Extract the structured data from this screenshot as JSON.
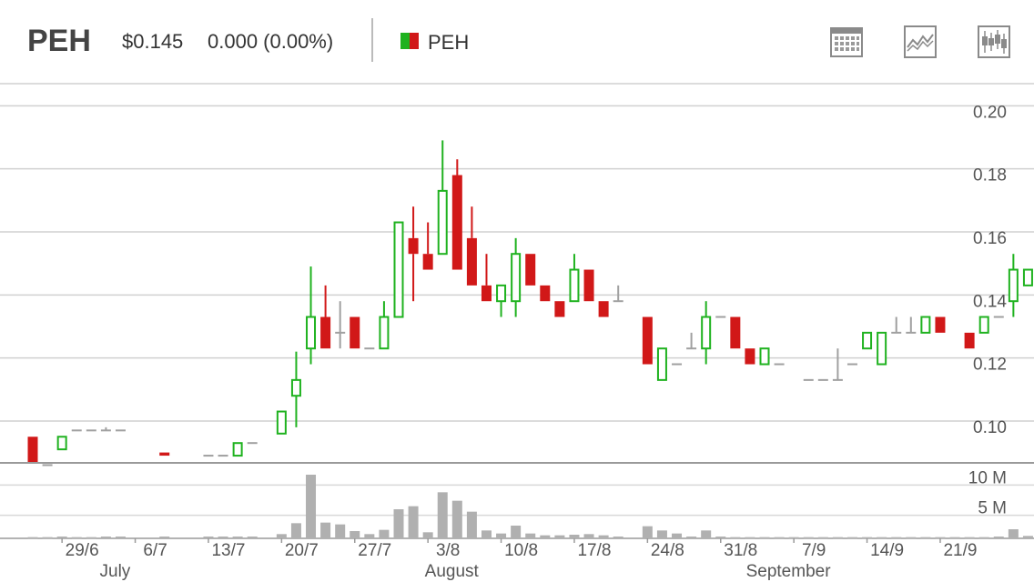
{
  "header": {
    "ticker": "PEH",
    "price": "$0.145",
    "change": "0.000 (0.00%)",
    "legend_label": "PEH",
    "legend_colors": [
      "#1fb21f",
      "#d11818"
    ],
    "tools": [
      {
        "name": "calendar-icon"
      },
      {
        "name": "line-chart-icon"
      },
      {
        "name": "candlestick-icon"
      }
    ]
  },
  "chart_data": {
    "type": "candlestick",
    "up_color": "#1fb21f",
    "down_color": "#d11818",
    "flat_color": "#a0a0a0",
    "price_axis": {
      "ylim": [
        0.085,
        0.205
      ],
      "ticks": [
        "0.10",
        "0.12",
        "0.14",
        "0.16",
        "0.18",
        "0.20"
      ],
      "tick_values": [
        0.1,
        0.12,
        0.14,
        0.16,
        0.18,
        0.2
      ]
    },
    "volume_axis": {
      "ylim": [
        0,
        12000000
      ],
      "ticks": [
        "5 M",
        "10 M"
      ],
      "tick_values": [
        5000000,
        10000000
      ]
    },
    "x_labels": [
      {
        "label": "29/6",
        "i": 2
      },
      {
        "label": "6/7",
        "i": 7
      },
      {
        "label": "13/7",
        "i": 12
      },
      {
        "label": "20/7",
        "i": 17
      },
      {
        "label": "27/7",
        "i": 22
      },
      {
        "label": "3/8",
        "i": 27
      },
      {
        "label": "10/8",
        "i": 32
      },
      {
        "label": "17/8",
        "i": 37
      },
      {
        "label": "24/8",
        "i": 42
      },
      {
        "label": "31/8",
        "i": 47
      },
      {
        "label": "7/9",
        "i": 52
      },
      {
        "label": "14/9",
        "i": 57
      },
      {
        "label": "21/9",
        "i": 62
      }
    ],
    "month_labels": [
      {
        "label": "July",
        "i": 5
      },
      {
        "label": "August",
        "i": 28
      },
      {
        "label": "September",
        "i": 51
      }
    ],
    "candles": [
      {
        "o": 0.093,
        "h": 0.093,
        "l": 0.085,
        "c": 0.085,
        "v": 200000
      },
      {
        "o": 0.084,
        "h": 0.084,
        "l": 0.084,
        "c": 0.084,
        "v": 200000
      },
      {
        "o": 0.089,
        "h": 0.093,
        "l": 0.089,
        "c": 0.093,
        "v": 300000
      },
      {
        "o": 0.095,
        "h": 0.095,
        "l": 0.095,
        "c": 0.095,
        "v": 200000
      },
      {
        "o": 0.095,
        "h": 0.095,
        "l": 0.095,
        "c": 0.095,
        "v": 200000
      },
      {
        "o": 0.095,
        "h": 0.096,
        "l": 0.095,
        "c": 0.095,
        "v": 300000
      },
      {
        "o": 0.095,
        "h": 0.095,
        "l": 0.095,
        "c": 0.095,
        "v": 300000
      },
      {
        "o": null,
        "h": null,
        "l": null,
        "c": null,
        "v": 0
      },
      {
        "o": null,
        "h": null,
        "l": null,
        "c": null,
        "v": 0
      },
      {
        "o": 0.088,
        "h": 0.088,
        "l": 0.087,
        "c": 0.087,
        "v": 300000
      },
      {
        "o": null,
        "h": null,
        "l": null,
        "c": null,
        "v": 0
      },
      {
        "o": null,
        "h": null,
        "l": null,
        "c": null,
        "v": 0
      },
      {
        "o": 0.087,
        "h": 0.087,
        "l": 0.087,
        "c": 0.087,
        "v": 300000
      },
      {
        "o": 0.087,
        "h": 0.087,
        "l": 0.087,
        "c": 0.087,
        "v": 300000
      },
      {
        "o": 0.087,
        "h": 0.091,
        "l": 0.087,
        "c": 0.091,
        "v": 300000
      },
      {
        "o": 0.091,
        "h": 0.091,
        "l": 0.091,
        "c": 0.091,
        "v": 300000
      },
      {
        "o": null,
        "h": null,
        "l": null,
        "c": null,
        "v": 0
      },
      {
        "o": 0.094,
        "h": 0.101,
        "l": 0.094,
        "c": 0.101,
        "v": 700000
      },
      {
        "o": 0.106,
        "h": 0.12,
        "l": 0.096,
        "c": 0.111,
        "v": 2500000
      },
      {
        "o": 0.121,
        "h": 0.147,
        "l": 0.116,
        "c": 0.131,
        "v": 10500000
      },
      {
        "o": 0.131,
        "h": 0.141,
        "l": 0.121,
        "c": 0.121,
        "v": 2600000
      },
      {
        "o": 0.126,
        "h": 0.136,
        "l": 0.121,
        "c": 0.126,
        "v": 2300000
      },
      {
        "o": 0.131,
        "h": 0.131,
        "l": 0.121,
        "c": 0.121,
        "v": 1200000
      },
      {
        "o": 0.121,
        "h": 0.121,
        "l": 0.121,
        "c": 0.121,
        "v": 700000
      },
      {
        "o": 0.121,
        "h": 0.136,
        "l": 0.121,
        "c": 0.131,
        "v": 1400000
      },
      {
        "o": 0.131,
        "h": 0.161,
        "l": 0.131,
        "c": 0.161,
        "v": 4800000
      },
      {
        "o": 0.156,
        "h": 0.166,
        "l": 0.136,
        "c": 0.151,
        "v": 5300000
      },
      {
        "o": 0.151,
        "h": 0.161,
        "l": 0.146,
        "c": 0.146,
        "v": 1000000
      },
      {
        "o": 0.151,
        "h": 0.187,
        "l": 0.151,
        "c": 0.171,
        "v": 7600000
      },
      {
        "o": 0.176,
        "h": 0.181,
        "l": 0.146,
        "c": 0.146,
        "v": 6200000
      },
      {
        "o": 0.156,
        "h": 0.166,
        "l": 0.141,
        "c": 0.141,
        "v": 4400000
      },
      {
        "o": 0.141,
        "h": 0.151,
        "l": 0.136,
        "c": 0.136,
        "v": 1300000
      },
      {
        "o": 0.136,
        "h": 0.141,
        "l": 0.131,
        "c": 0.141,
        "v": 800000
      },
      {
        "o": 0.136,
        "h": 0.156,
        "l": 0.131,
        "c": 0.151,
        "v": 2100000
      },
      {
        "o": 0.151,
        "h": 0.151,
        "l": 0.141,
        "c": 0.141,
        "v": 800000
      },
      {
        "o": 0.141,
        "h": 0.141,
        "l": 0.136,
        "c": 0.136,
        "v": 500000
      },
      {
        "o": 0.136,
        "h": 0.136,
        "l": 0.131,
        "c": 0.131,
        "v": 500000
      },
      {
        "o": 0.136,
        "h": 0.151,
        "l": 0.136,
        "c": 0.146,
        "v": 600000
      },
      {
        "o": 0.146,
        "h": 0.146,
        "l": 0.136,
        "c": 0.136,
        "v": 700000
      },
      {
        "o": 0.136,
        "h": 0.136,
        "l": 0.131,
        "c": 0.131,
        "v": 500000
      },
      {
        "o": 0.136,
        "h": 0.141,
        "l": 0.136,
        "c": 0.136,
        "v": 300000
      },
      {
        "o": null,
        "h": null,
        "l": null,
        "c": null,
        "v": 0
      },
      {
        "o": 0.131,
        "h": 0.131,
        "l": 0.116,
        "c": 0.116,
        "v": 2000000
      },
      {
        "o": 0.111,
        "h": 0.121,
        "l": 0.111,
        "c": 0.121,
        "v": 1300000
      },
      {
        "o": 0.116,
        "h": 0.116,
        "l": 0.116,
        "c": 0.116,
        "v": 800000
      },
      {
        "o": 0.121,
        "h": 0.126,
        "l": 0.121,
        "c": 0.121,
        "v": 300000
      },
      {
        "o": 0.121,
        "h": 0.136,
        "l": 0.116,
        "c": 0.131,
        "v": 1300000
      },
      {
        "o": 0.131,
        "h": 0.131,
        "l": 0.131,
        "c": 0.131,
        "v": 300000
      },
      {
        "o": 0.131,
        "h": 0.131,
        "l": 0.121,
        "c": 0.121,
        "v": 200000
      },
      {
        "o": 0.121,
        "h": 0.121,
        "l": 0.116,
        "c": 0.116,
        "v": 200000
      },
      {
        "o": 0.116,
        "h": 0.121,
        "l": 0.116,
        "c": 0.121,
        "v": 200000
      },
      {
        "o": 0.116,
        "h": 0.116,
        "l": 0.116,
        "c": 0.116,
        "v": 200000
      },
      {
        "o": null,
        "h": null,
        "l": null,
        "c": null,
        "v": 200000
      },
      {
        "o": 0.111,
        "h": 0.111,
        "l": 0.111,
        "c": 0.111,
        "v": 200000
      },
      {
        "o": 0.111,
        "h": 0.111,
        "l": 0.111,
        "c": 0.111,
        "v": 200000
      },
      {
        "o": 0.111,
        "h": 0.121,
        "l": 0.111,
        "c": 0.111,
        "v": 200000
      },
      {
        "o": 0.116,
        "h": 0.116,
        "l": 0.116,
        "c": 0.116,
        "v": 200000
      },
      {
        "o": 0.121,
        "h": 0.126,
        "l": 0.121,
        "c": 0.126,
        "v": 200000
      },
      {
        "o": 0.116,
        "h": 0.126,
        "l": 0.116,
        "c": 0.126,
        "v": 200000
      },
      {
        "o": 0.126,
        "h": 0.131,
        "l": 0.126,
        "c": 0.126,
        "v": 200000
      },
      {
        "o": 0.126,
        "h": 0.131,
        "l": 0.126,
        "c": 0.126,
        "v": 200000
      },
      {
        "o": 0.126,
        "h": 0.131,
        "l": 0.126,
        "c": 0.131,
        "v": 200000
      },
      {
        "o": 0.131,
        "h": 0.131,
        "l": 0.126,
        "c": 0.126,
        "v": 200000
      },
      {
        "o": null,
        "h": null,
        "l": null,
        "c": null,
        "v": 200000
      },
      {
        "o": 0.126,
        "h": 0.126,
        "l": 0.121,
        "c": 0.121,
        "v": 200000
      },
      {
        "o": 0.126,
        "h": 0.131,
        "l": 0.126,
        "c": 0.131,
        "v": 200000
      },
      {
        "o": 0.131,
        "h": 0.131,
        "l": 0.131,
        "c": 0.131,
        "v": 300000
      },
      {
        "o": 0.136,
        "h": 0.151,
        "l": 0.131,
        "c": 0.146,
        "v": 1500000
      },
      {
        "o": 0.141,
        "h": 0.146,
        "l": 0.141,
        "c": 0.146,
        "v": 400000
      }
    ]
  }
}
